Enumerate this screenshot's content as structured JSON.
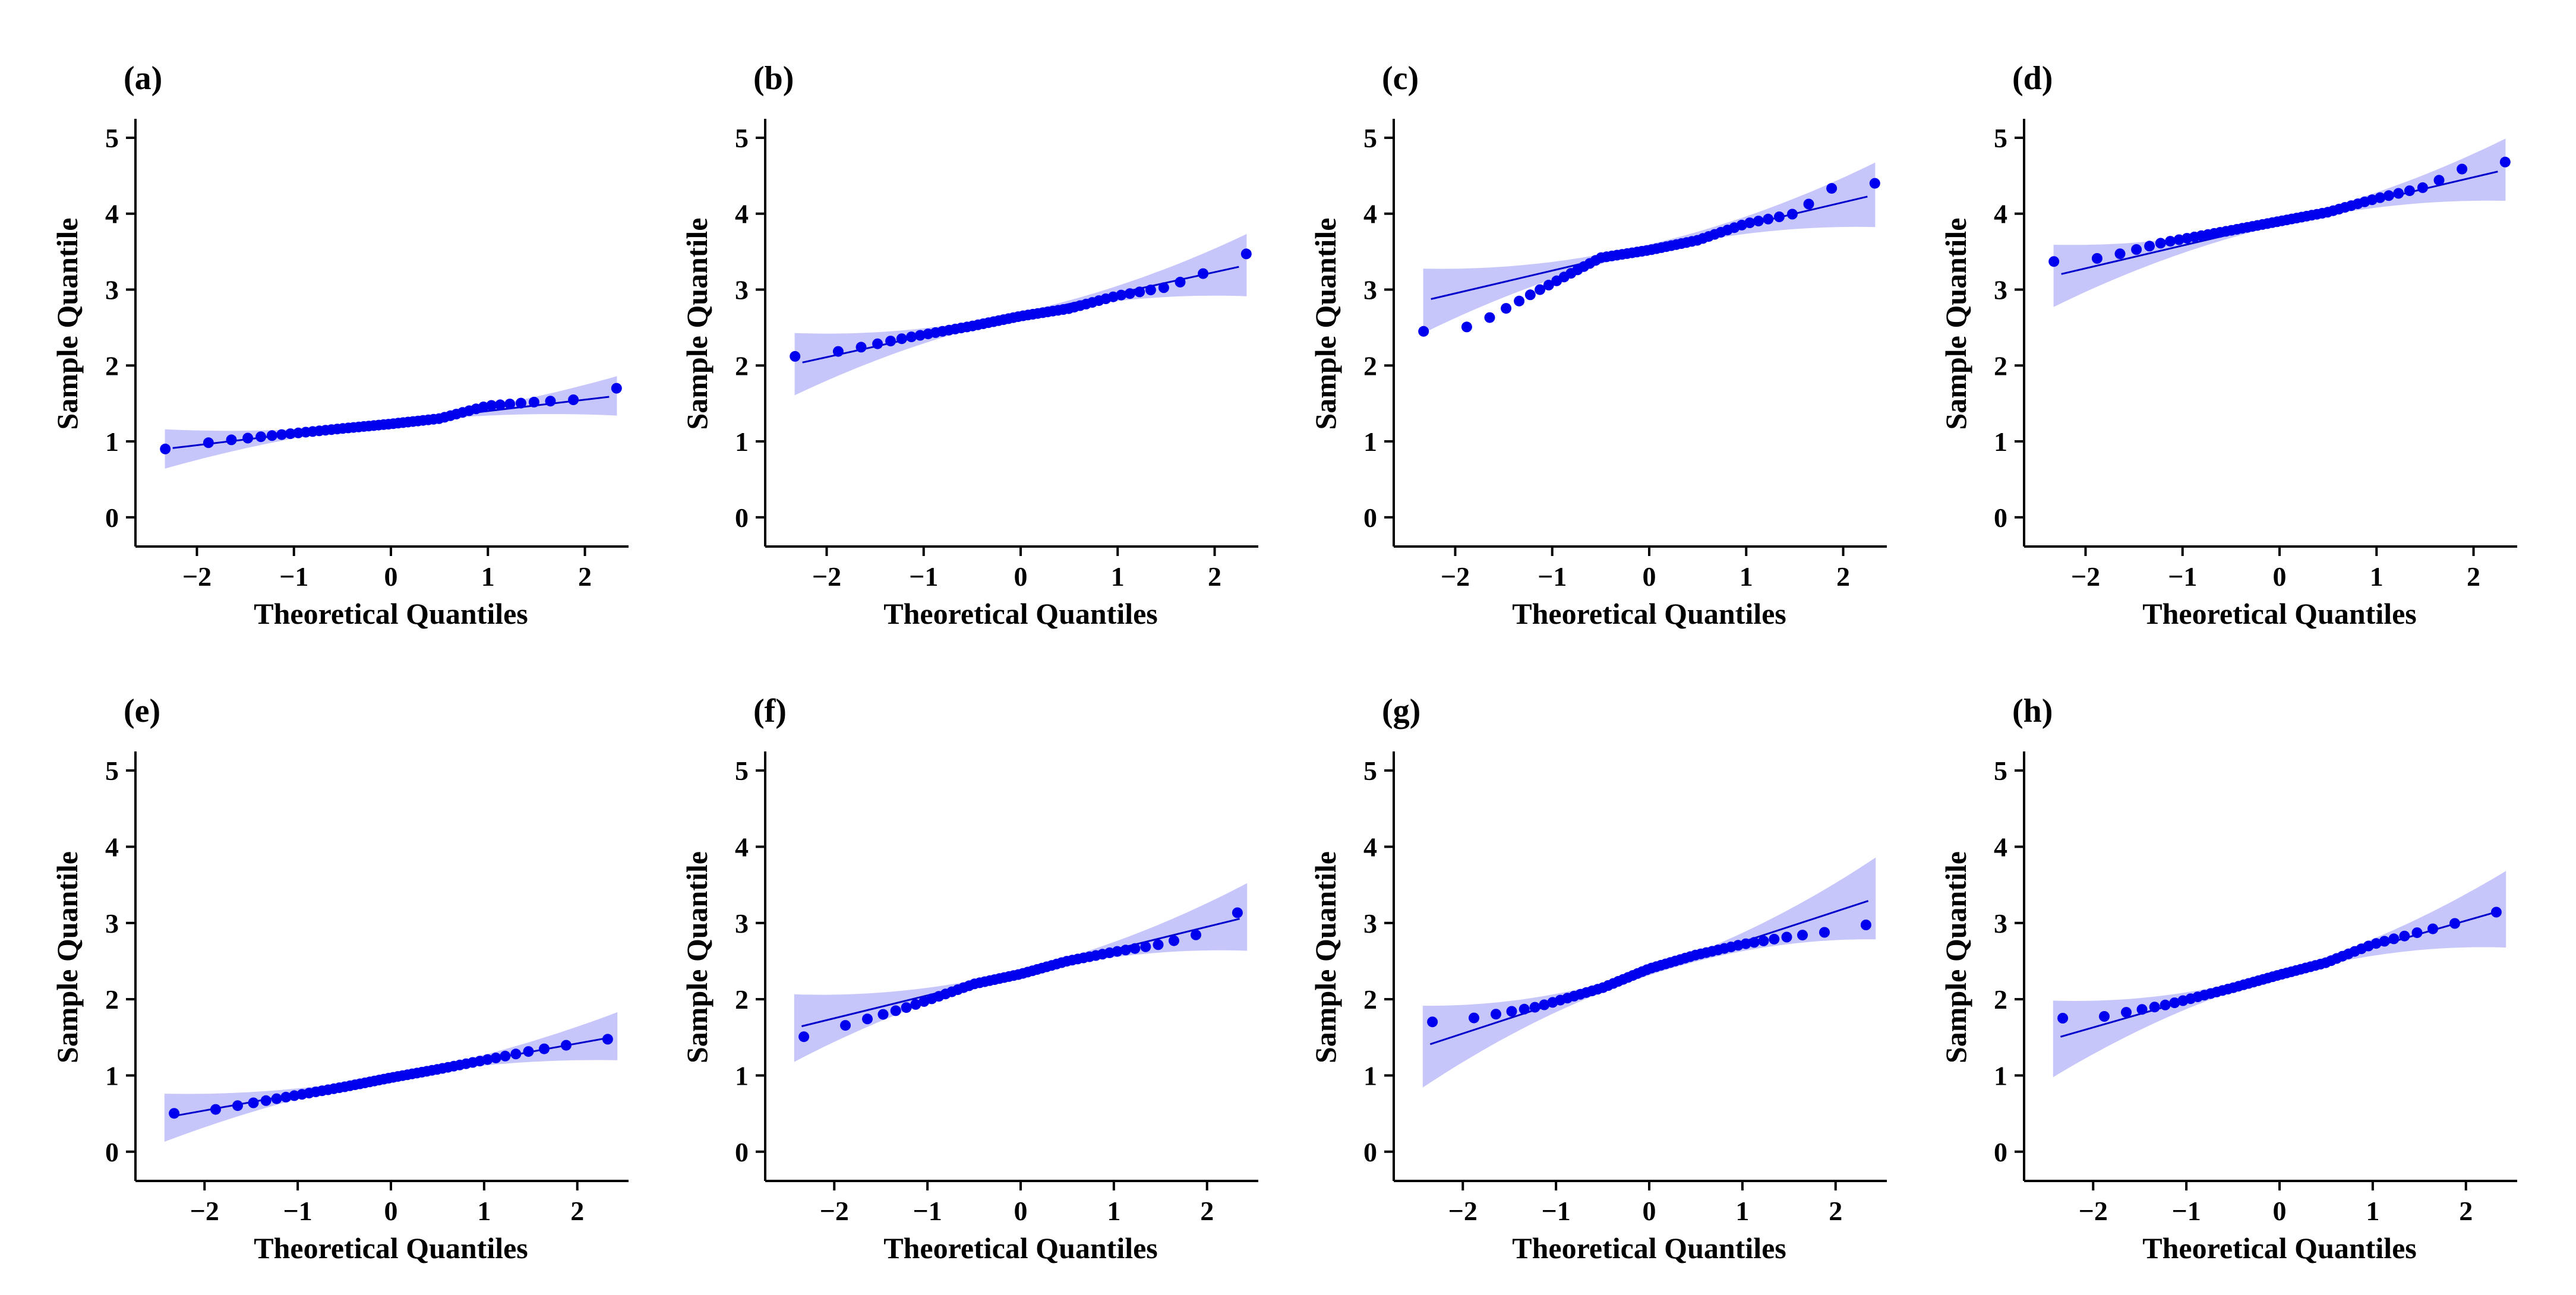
{
  "chart_data": [
    {
      "panel": "(a)",
      "type": "scatter",
      "xlabel": "Theoretical Quantiles",
      "ylabel": "Sample Quantile",
      "xlim": [
        -2.45,
        2.45
      ],
      "ylim": [
        -0.15,
        5.25
      ],
      "x_ticks": [
        -2,
        -1,
        0,
        1,
        2
      ],
      "x_tick_labels": [
        "−2",
        "−1",
        "0",
        "1",
        "2"
      ],
      "y_ticks": [
        0,
        1,
        2,
        3,
        4,
        5
      ],
      "y_tick_labels": [
        "0",
        "1",
        "2",
        "3",
        "4",
        "5"
      ],
      "n": 50,
      "fit": {
        "intercept": 1.25,
        "slope": 0.15,
        "band": [
          0.045,
          0.015
        ]
      },
      "anchors": [
        [
          -2.25,
          0.9
        ],
        [
          -1.8,
          1.0
        ],
        [
          -1.2,
          1.08
        ],
        [
          -0.5,
          1.17
        ],
        [
          0.0,
          1.23
        ],
        [
          0.5,
          1.3
        ],
        [
          1.0,
          1.47
        ],
        [
          1.5,
          1.52
        ],
        [
          1.9,
          1.55
        ],
        [
          2.25,
          1.7
        ]
      ]
    },
    {
      "panel": "(b)",
      "type": "scatter",
      "xlabel": "Theoretical Quantiles",
      "ylabel": "Sample Quantile",
      "xlim": [
        -2.45,
        2.45
      ],
      "ylim": [
        -0.15,
        5.25
      ],
      "x_ticks": [
        -2,
        -1,
        0,
        1,
        2
      ],
      "x_tick_labels": [
        "−2",
        "−1",
        "0",
        "1",
        "2"
      ],
      "y_ticks": [
        0,
        1,
        2,
        3,
        4,
        5
      ],
      "y_tick_labels": [
        "0",
        "1",
        "2",
        "3",
        "4",
        "5"
      ],
      "n": 50,
      "fit": {
        "intercept": 2.67,
        "slope": 0.28,
        "band": [
          0.07,
          0.03
        ]
      },
      "anchors": [
        [
          -2.25,
          2.12
        ],
        [
          -1.8,
          2.2
        ],
        [
          -1.2,
          2.36
        ],
        [
          -0.5,
          2.52
        ],
        [
          0.0,
          2.65
        ],
        [
          0.5,
          2.75
        ],
        [
          1.0,
          2.92
        ],
        [
          1.5,
          3.03
        ],
        [
          1.9,
          3.22
        ],
        [
          2.25,
          3.47
        ]
      ]
    },
    {
      "panel": "(c)",
      "type": "scatter",
      "xlabel": "Theoretical Quantiles",
      "ylabel": "Sample Quantile",
      "xlim": [
        -2.45,
        2.45
      ],
      "ylim": [
        -0.15,
        5.25
      ],
      "x_ticks": [
        -2,
        -1,
        0,
        1,
        2
      ],
      "x_tick_labels": [
        "−2",
        "−1",
        "0",
        "1",
        "2"
      ],
      "y_ticks": [
        0,
        1,
        2,
        3,
        4,
        5
      ],
      "y_tick_labels": [
        "0",
        "1",
        "2",
        "3",
        "4",
        "5"
      ],
      "n": 50,
      "fit": {
        "intercept": 3.55,
        "slope": 0.3,
        "band": [
          0.07,
          0.045
        ]
      },
      "anchors": [
        [
          -2.25,
          2.45
        ],
        [
          -1.8,
          2.52
        ],
        [
          -1.2,
          2.95
        ],
        [
          -0.5,
          3.42
        ],
        [
          0.0,
          3.52
        ],
        [
          0.5,
          3.65
        ],
        [
          1.0,
          3.87
        ],
        [
          1.5,
          4.0
        ],
        [
          1.9,
          4.35
        ],
        [
          2.25,
          4.4
        ]
      ]
    },
    {
      "panel": "(d)",
      "type": "scatter",
      "xlabel": "Theoretical Quantiles",
      "ylabel": "Sample Quantile",
      "xlim": [
        -2.45,
        2.45
      ],
      "ylim": [
        -0.15,
        5.25
      ],
      "x_ticks": [
        -2,
        -1,
        0,
        1,
        2
      ],
      "x_tick_labels": [
        "−2",
        "−1",
        "0",
        "1",
        "2"
      ],
      "y_ticks": [
        0,
        1,
        2,
        3,
        4,
        5
      ],
      "y_tick_labels": [
        "0",
        "1",
        "2",
        "3",
        "4",
        "5"
      ],
      "n": 50,
      "fit": {
        "intercept": 3.88,
        "slope": 0.3,
        "band": [
          0.07,
          0.03
        ]
      },
      "anchors": [
        [
          -2.25,
          3.37
        ],
        [
          -1.8,
          3.42
        ],
        [
          -1.2,
          3.62
        ],
        [
          -0.5,
          3.78
        ],
        [
          0.0,
          3.9
        ],
        [
          0.5,
          4.02
        ],
        [
          1.0,
          4.2
        ],
        [
          1.5,
          4.35
        ],
        [
          1.9,
          4.6
        ],
        [
          2.25,
          4.68
        ]
      ]
    },
    {
      "panel": "(e)",
      "type": "scatter",
      "xlabel": "Theoretical Quantiles",
      "ylabel": "Sample Quantile",
      "xlim": [
        -2.55,
        2.55
      ],
      "ylim": [
        -0.15,
        5.25
      ],
      "x_ticks": [
        -2,
        -1,
        0,
        1,
        2
      ],
      "x_tick_labels": [
        "−2",
        "−1",
        "0",
        "1",
        "2"
      ],
      "y_ticks": [
        0,
        1,
        2,
        3,
        4,
        5
      ],
      "y_tick_labels": [
        "0",
        "1",
        "2",
        "3",
        "4",
        "5"
      ],
      "n": 50,
      "fit": {
        "intercept": 0.98,
        "slope": 0.22,
        "band": [
          0.05,
          0.02
        ]
      },
      "anchors": [
        [
          -2.35,
          0.5
        ],
        [
          -1.9,
          0.55
        ],
        [
          -1.2,
          0.7
        ],
        [
          -0.5,
          0.85
        ],
        [
          0.0,
          0.97
        ],
        [
          0.5,
          1.08
        ],
        [
          1.0,
          1.2
        ],
        [
          1.5,
          1.32
        ],
        [
          1.9,
          1.4
        ],
        [
          2.35,
          1.48
        ]
      ]
    },
    {
      "panel": "(f)",
      "type": "scatter",
      "xlabel": "Theoretical Quantiles",
      "ylabel": "Sample Quantile",
      "xlim": [
        -2.55,
        2.55
      ],
      "ylim": [
        -0.15,
        5.25
      ],
      "x_ticks": [
        -2,
        -1,
        0,
        1,
        2
      ],
      "x_tick_labels": [
        "−2",
        "−1",
        "0",
        "1",
        "2"
      ],
      "y_ticks": [
        0,
        1,
        2,
        3,
        4,
        5
      ],
      "y_tick_labels": [
        "0",
        "1",
        "2",
        "3",
        "4",
        "5"
      ],
      "n": 50,
      "fit": {
        "intercept": 2.35,
        "slope": 0.3,
        "band": [
          0.07,
          0.03
        ]
      },
      "anchors": [
        [
          -2.35,
          1.5
        ],
        [
          -1.9,
          1.65
        ],
        [
          -1.2,
          1.9
        ],
        [
          -0.5,
          2.2
        ],
        [
          0.0,
          2.33
        ],
        [
          0.5,
          2.5
        ],
        [
          1.0,
          2.62
        ],
        [
          1.5,
          2.72
        ],
        [
          1.9,
          2.85
        ],
        [
          2.35,
          3.15
        ]
      ]
    },
    {
      "panel": "(g)",
      "type": "scatter",
      "xlabel": "Theoretical Quantiles",
      "ylabel": "Sample Quantile",
      "xlim": [
        -2.55,
        2.55
      ],
      "ylim": [
        -0.15,
        5.25
      ],
      "x_ticks": [
        -2,
        -1,
        0,
        1,
        2
      ],
      "x_tick_labels": [
        "−2",
        "−1",
        "0",
        "1",
        "2"
      ],
      "y_ticks": [
        0,
        1,
        2,
        3,
        4,
        5
      ],
      "y_tick_labels": [
        "0",
        "1",
        "2",
        "3",
        "4",
        "5"
      ],
      "n": 50,
      "fit": {
        "intercept": 2.35,
        "slope": 0.4,
        "band": [
          0.085,
          0.035
        ]
      },
      "anchors": [
        [
          -2.35,
          1.7
        ],
        [
          -1.9,
          1.75
        ],
        [
          -1.2,
          1.9
        ],
        [
          -0.5,
          2.15
        ],
        [
          0.0,
          2.4
        ],
        [
          0.5,
          2.58
        ],
        [
          1.0,
          2.72
        ],
        [
          1.5,
          2.82
        ],
        [
          1.9,
          2.88
        ],
        [
          2.35,
          2.98
        ]
      ]
    },
    {
      "panel": "(h)",
      "type": "scatter",
      "xlabel": "Theoretical Quantiles",
      "ylabel": "Sample Quantile",
      "xlim": [
        -2.55,
        2.55
      ],
      "ylim": [
        -0.15,
        5.25
      ],
      "x_ticks": [
        -2,
        -1,
        0,
        1,
        2
      ],
      "x_tick_labels": [
        "−2",
        "−1",
        "0",
        "1",
        "2"
      ],
      "y_ticks": [
        0,
        1,
        2,
        3,
        4,
        5
      ],
      "y_tick_labels": [
        "0",
        "1",
        "2",
        "3",
        "4",
        "5"
      ],
      "n": 50,
      "fit": {
        "intercept": 2.33,
        "slope": 0.35,
        "band": [
          0.08,
          0.03
        ]
      },
      "anchors": [
        [
          -2.35,
          1.75
        ],
        [
          -1.9,
          1.77
        ],
        [
          -1.2,
          1.93
        ],
        [
          -0.5,
          2.15
        ],
        [
          0.0,
          2.32
        ],
        [
          0.5,
          2.48
        ],
        [
          1.0,
          2.72
        ],
        [
          1.5,
          2.88
        ],
        [
          1.9,
          3.0
        ],
        [
          2.35,
          3.15
        ]
      ]
    }
  ]
}
